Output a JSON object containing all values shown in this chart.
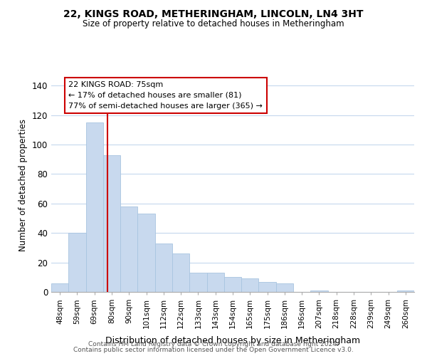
{
  "title": "22, KINGS ROAD, METHERINGHAM, LINCOLN, LN4 3HT",
  "subtitle": "Size of property relative to detached houses in Metheringham",
  "xlabel": "Distribution of detached houses by size in Metheringham",
  "ylabel": "Number of detached properties",
  "bar_labels": [
    "48sqm",
    "59sqm",
    "69sqm",
    "80sqm",
    "90sqm",
    "101sqm",
    "112sqm",
    "122sqm",
    "133sqm",
    "143sqm",
    "154sqm",
    "165sqm",
    "175sqm",
    "186sqm",
    "196sqm",
    "207sqm",
    "218sqm",
    "228sqm",
    "239sqm",
    "249sqm",
    "260sqm"
  ],
  "bar_values": [
    6,
    40,
    115,
    93,
    58,
    53,
    33,
    26,
    13,
    13,
    10,
    9,
    7,
    6,
    0,
    1,
    0,
    0,
    0,
    0,
    1
  ],
  "bar_color": "#c8d9ee",
  "bar_edge_color": "#a8c4e0",
  "vline_color": "#cc0000",
  "ylim": [
    0,
    145
  ],
  "yticks": [
    0,
    20,
    40,
    60,
    80,
    100,
    120,
    140
  ],
  "annotation_title": "22 KINGS ROAD: 75sqm",
  "annotation_line1": "← 17% of detached houses are smaller (81)",
  "annotation_line2": "77% of semi-detached houses are larger (365) →",
  "annotation_box_color": "#ffffff",
  "annotation_box_edge": "#cc0000",
  "footer1": "Contains HM Land Registry data © Crown copyright and database right 2024.",
  "footer2": "Contains public sector information licensed under the Open Government Licence v3.0.",
  "background_color": "#ffffff",
  "grid_color": "#c5d8ed"
}
